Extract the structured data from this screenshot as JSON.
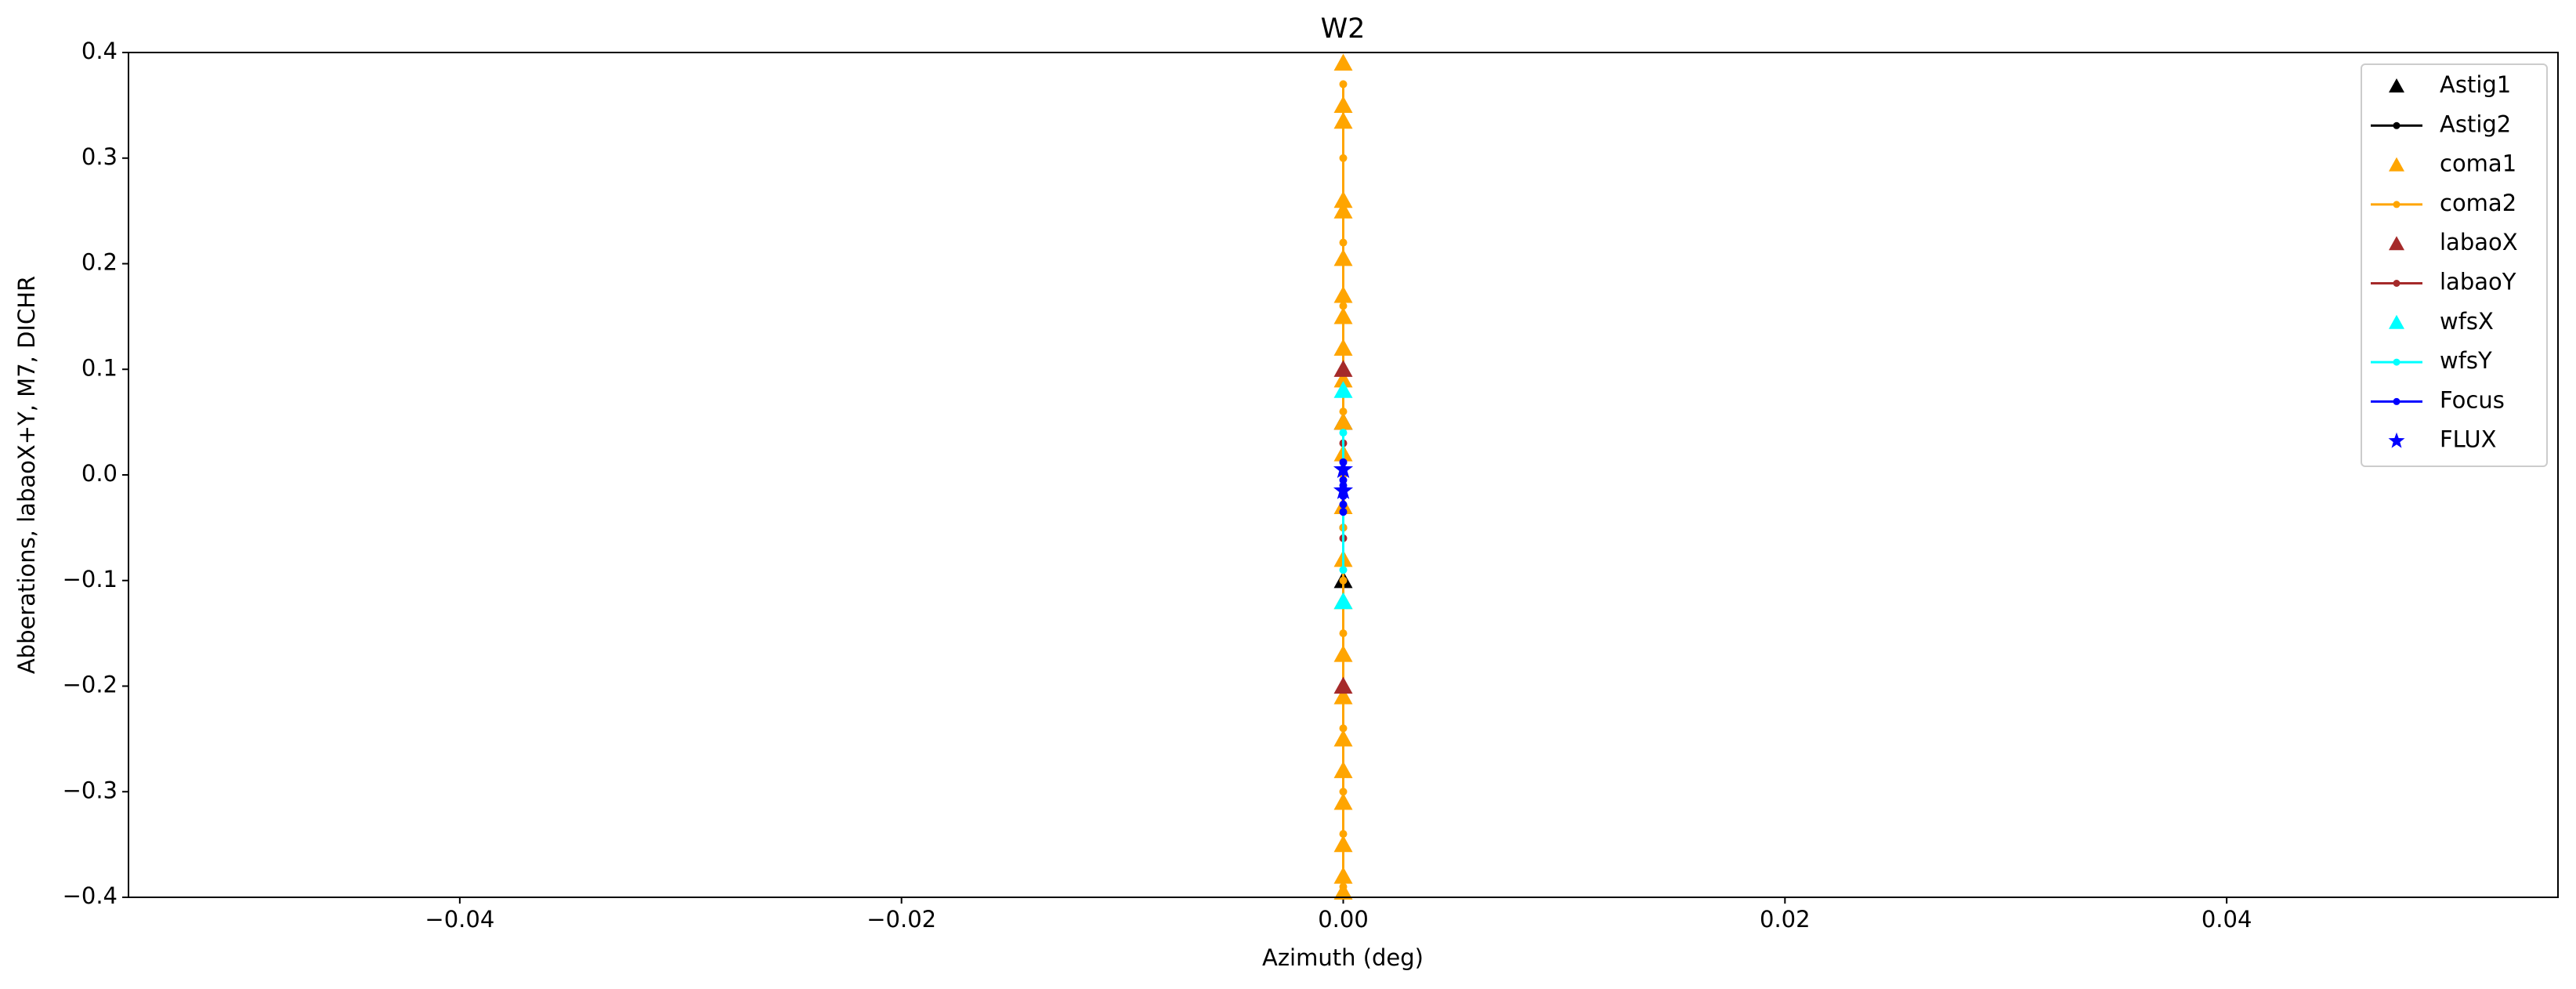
{
  "chart_data": {
    "type": "scatter",
    "title": "W2",
    "x_label": "Azimuth (deg)",
    "y_label": "Abberations, labaoX+Y, M7, DICHR",
    "xlim": [
      -0.055,
      0.055
    ],
    "xticks": [
      {
        "value": -0.04,
        "label": "−0.04"
      },
      {
        "value": -0.02,
        "label": "−0.02"
      },
      {
        "value": 0,
        "label": "0.00"
      },
      {
        "value": 0.02,
        "label": "0.02"
      },
      {
        "value": 0.04,
        "label": "0.04"
      }
    ],
    "ylim": [
      -0.4,
      0.4
    ],
    "yticks": [
      {
        "value": -0.4,
        "label": "−0.4"
      },
      {
        "value": -0.3,
        "label": "−0.3"
      },
      {
        "value": -0.2,
        "label": "−0.2"
      },
      {
        "value": -0.1,
        "label": "−0.1"
      },
      {
        "value": 0,
        "label": "0.0"
      },
      0.1,
      0.2,
      0.3,
      0.4
    ],
    "legend": "upper right",
    "series": [
      {
        "name": "Astig1",
        "color": "#000000",
        "marker": "triangle",
        "line": false,
        "x": [
          0,
          0
        ],
        "values": [
          0.05,
          -0.1
        ]
      },
      {
        "name": "Astig2",
        "color": "#000000",
        "marker": "dot",
        "line": true,
        "x": [
          0,
          0
        ],
        "values": [
          0.02,
          -0.05
        ]
      },
      {
        "name": "coma1",
        "color": "#ffa500",
        "marker": "triangle",
        "line": false,
        "x": [
          0,
          0,
          0,
          0,
          0,
          0,
          0,
          0,
          0,
          0,
          0,
          0,
          0,
          0,
          0,
          0,
          0,
          0,
          0,
          0,
          0,
          0,
          0
        ],
        "values": [
          0.39,
          0.35,
          0.335,
          0.26,
          0.25,
          0.205,
          0.17,
          0.15,
          0.12,
          0.09,
          0.05,
          0.02,
          -0.03,
          -0.08,
          -0.12,
          -0.17,
          -0.21,
          -0.25,
          -0.28,
          -0.31,
          -0.35,
          -0.38,
          -0.395
        ]
      },
      {
        "name": "coma2",
        "color": "#ffa500",
        "marker": "dot",
        "line": true,
        "x": [
          0,
          0,
          0,
          0,
          0,
          0,
          0,
          0,
          0,
          0,
          0,
          0,
          0,
          0,
          0
        ],
        "values": [
          0.37,
          0.3,
          0.22,
          0.16,
          0.1,
          0.06,
          0.0,
          -0.05,
          -0.1,
          -0.15,
          -0.2,
          -0.24,
          -0.3,
          -0.34,
          -0.39
        ]
      },
      {
        "name": "labaoX",
        "color": "#a52a2a",
        "marker": "triangle",
        "line": false,
        "x": [
          0,
          0
        ],
        "values": [
          0.1,
          -0.2
        ]
      },
      {
        "name": "labaoY",
        "color": "#a52a2a",
        "marker": "dot",
        "line": true,
        "x": [
          0,
          0
        ],
        "values": [
          0.03,
          -0.06
        ]
      },
      {
        "name": "wfsX",
        "color": "#00ffff",
        "marker": "triangle",
        "line": false,
        "x": [
          0,
          0
        ],
        "values": [
          0.08,
          -0.12
        ]
      },
      {
        "name": "wfsY",
        "color": "#00ffff",
        "marker": "dot",
        "line": true,
        "x": [
          0,
          0
        ],
        "values": [
          0.04,
          -0.09
        ]
      },
      {
        "name": "Focus",
        "color": "#0000ff",
        "marker": "dot",
        "line": true,
        "x": [
          0,
          0,
          0,
          0,
          0,
          0,
          0
        ],
        "values": [
          0.012,
          -0.005,
          -0.02,
          0.003,
          -0.035,
          -0.01,
          -0.028
        ]
      },
      {
        "name": "FLUX",
        "color": "#0000ff",
        "marker": "star",
        "line": false,
        "x": [
          0,
          0
        ],
        "values": [
          -0.015,
          0.005
        ]
      }
    ]
  }
}
